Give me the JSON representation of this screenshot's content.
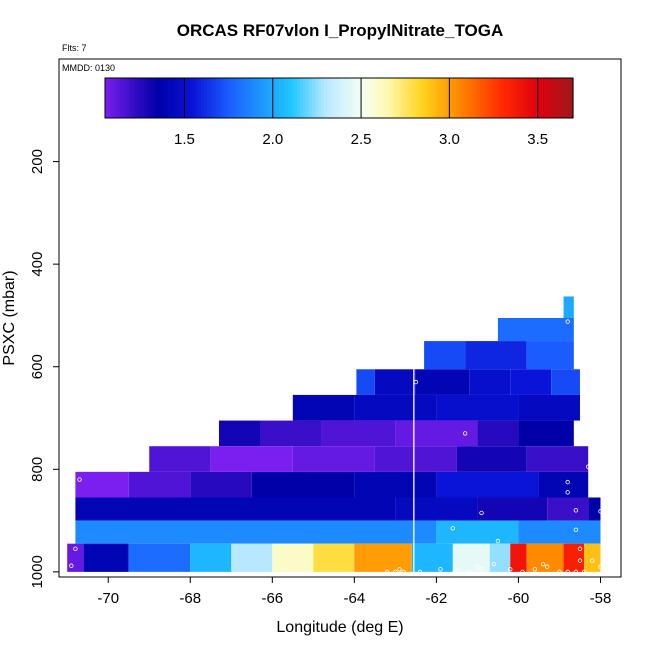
{
  "chart_data": {
    "type": "heatmap",
    "title": "ORCAS RF07vlon I_PropylNitrate_TOGA",
    "top_note": "Flts: 7",
    "legend_note": "MMDD: 0130",
    "xlabel": "Longitude (deg E)",
    "ylabel": "PSXC (mbar)",
    "xlim": [
      -71.2,
      -57.5
    ],
    "ylim": [
      1010,
      0
    ],
    "x_ticks": [
      -70,
      -68,
      -66,
      -64,
      -62,
      -60,
      -58
    ],
    "x_tick_labels": [
      "-70",
      "-68",
      "-66",
      "-64",
      "-62",
      "-60",
      "-58"
    ],
    "y_ticks": [
      200,
      400,
      600,
      800,
      1000
    ],
    "y_tick_labels": [
      "200",
      "400",
      "600",
      "800",
      "1000"
    ],
    "colorbar": {
      "range": [
        1.05,
        3.7
      ],
      "ticks": [
        1.5,
        2.0,
        2.5,
        3.0,
        3.5
      ],
      "tick_labels": [
        "1.5",
        "2.0",
        "2.5",
        "3.0",
        "3.5"
      ],
      "stops": [
        {
          "v": 1.05,
          "c": "#7a1ff0"
        },
        {
          "v": 1.2,
          "c": "#3a0fc8"
        },
        {
          "v": 1.35,
          "c": "#0000a8"
        },
        {
          "v": 1.55,
          "c": "#0a14d8"
        },
        {
          "v": 1.75,
          "c": "#1a5cff"
        },
        {
          "v": 1.95,
          "c": "#1e9bff"
        },
        {
          "v": 2.1,
          "c": "#1ec4ff"
        },
        {
          "v": 2.3,
          "c": "#b8e8ff"
        },
        {
          "v": 2.5,
          "c": "#f4fff4"
        },
        {
          "v": 2.65,
          "c": "#fff9b0"
        },
        {
          "v": 2.85,
          "c": "#ffd21a"
        },
        {
          "v": 3.05,
          "c": "#ff8a00"
        },
        {
          "v": 3.3,
          "c": "#ff2a00"
        },
        {
          "v": 3.5,
          "c": "#e00010"
        },
        {
          "v": 3.7,
          "c": "#9e1a1a"
        }
      ]
    },
    "levels": [
      {
        "p_top": 463,
        "p_bot": 505,
        "cells": [
          {
            "x0": -58.9,
            "x1": -58.65,
            "v": 2.0
          }
        ]
      },
      {
        "p_top": 505,
        "p_bot": 550,
        "cells": [
          {
            "x0": -60.5,
            "x1": -58.65,
            "v": 1.8
          }
        ]
      },
      {
        "p_top": 550,
        "p_bot": 605,
        "cells": [
          {
            "x0": -62.3,
            "x1": -61.3,
            "v": 1.7
          },
          {
            "x0": -61.3,
            "x1": -59.8,
            "v": 1.6
          },
          {
            "x0": -59.8,
            "x1": -58.65,
            "v": 1.75
          }
        ]
      },
      {
        "p_top": 605,
        "p_bot": 655,
        "cells": [
          {
            "x0": -63.95,
            "x1": -63.5,
            "v": 1.7
          },
          {
            "x0": -63.5,
            "x1": -62.5,
            "v": 1.45
          },
          {
            "x0": -62.5,
            "x1": -61.2,
            "v": 1.4
          },
          {
            "x0": -61.2,
            "x1": -60.2,
            "v": 1.5
          },
          {
            "x0": -60.2,
            "x1": -59.2,
            "v": 1.55
          },
          {
            "x0": -59.2,
            "x1": -58.5,
            "v": 1.7
          }
        ]
      },
      {
        "p_top": 655,
        "p_bot": 705,
        "cells": [
          {
            "x0": -65.5,
            "x1": -64.0,
            "v": 1.4
          },
          {
            "x0": -64.0,
            "x1": -62.0,
            "v": 1.45
          },
          {
            "x0": -62.0,
            "x1": -60.0,
            "v": 1.5
          },
          {
            "x0": -60.0,
            "x1": -58.5,
            "v": 1.45
          }
        ]
      },
      {
        "p_top": 705,
        "p_bot": 755,
        "cells": [
          {
            "x0": -67.3,
            "x1": -66.3,
            "v": 1.3
          },
          {
            "x0": -66.3,
            "x1": -64.8,
            "v": 1.2
          },
          {
            "x0": -64.8,
            "x1": -63.0,
            "v": 1.15
          },
          {
            "x0": -63.0,
            "x1": -61.0,
            "v": 1.1
          },
          {
            "x0": -61.0,
            "x1": -60.0,
            "v": 1.25
          },
          {
            "x0": -60.0,
            "x1": -58.65,
            "v": 1.35
          }
        ]
      },
      {
        "p_top": 755,
        "p_bot": 805,
        "cells": [
          {
            "x0": -69.0,
            "x1": -67.5,
            "v": 1.15
          },
          {
            "x0": -67.5,
            "x1": -65.5,
            "v": 1.05
          },
          {
            "x0": -65.5,
            "x1": -63.5,
            "v": 1.1
          },
          {
            "x0": -63.5,
            "x1": -61.5,
            "v": 1.15
          },
          {
            "x0": -61.5,
            "x1": -59.8,
            "v": 1.3
          },
          {
            "x0": -59.8,
            "x1": -58.3,
            "v": 1.2
          }
        ]
      },
      {
        "p_top": 805,
        "p_bot": 855,
        "cells": [
          {
            "x0": -70.8,
            "x1": -69.5,
            "v": 1.05
          },
          {
            "x0": -69.5,
            "x1": -68.0,
            "v": 1.15
          },
          {
            "x0": -68.0,
            "x1": -66.5,
            "v": 1.25
          },
          {
            "x0": -66.5,
            "x1": -64.0,
            "v": 1.35
          },
          {
            "x0": -64.0,
            "x1": -62.0,
            "v": 1.4
          },
          {
            "x0": -62.0,
            "x1": -59.5,
            "v": 1.55
          },
          {
            "x0": -59.5,
            "x1": -58.3,
            "v": 1.4
          }
        ]
      },
      {
        "p_top": 855,
        "p_bot": 900,
        "cells": [
          {
            "x0": -70.8,
            "x1": -63.0,
            "v": 1.4
          },
          {
            "x0": -63.0,
            "x1": -61.0,
            "v": 1.45
          },
          {
            "x0": -61.0,
            "x1": -59.3,
            "v": 1.3
          },
          {
            "x0": -59.3,
            "x1": -58.3,
            "v": 1.2
          },
          {
            "x0": -58.3,
            "x1": -58.0,
            "v": 1.35
          }
        ]
      },
      {
        "p_top": 900,
        "p_bot": 945,
        "cells": [
          {
            "x0": -70.8,
            "x1": -62.0,
            "v": 1.9
          },
          {
            "x0": -62.0,
            "x1": -60.0,
            "v": 2.05
          },
          {
            "x0": -60.0,
            "x1": -58.0,
            "v": 1.9
          }
        ]
      },
      {
        "p_top": 945,
        "p_bot": 1000,
        "cells": [
          {
            "x0": -71.0,
            "x1": -70.6,
            "v": 1.1
          },
          {
            "x0": -70.6,
            "x1": -69.5,
            "v": 1.4
          },
          {
            "x0": -69.5,
            "x1": -68.0,
            "v": 1.8
          },
          {
            "x0": -68.0,
            "x1": -67.0,
            "v": 2.05
          },
          {
            "x0": -67.0,
            "x1": -66.0,
            "v": 2.3
          },
          {
            "x0": -66.0,
            "x1": -65.0,
            "v": 2.6
          },
          {
            "x0": -65.0,
            "x1": -64.0,
            "v": 2.8
          },
          {
            "x0": -64.0,
            "x1": -62.6,
            "v": 3.0
          },
          {
            "x0": -62.6,
            "x1": -61.6,
            "v": 2.05
          },
          {
            "x0": -61.6,
            "x1": -60.7,
            "v": 2.45
          },
          {
            "x0": -60.7,
            "x1": -60.2,
            "v": 2.25
          },
          {
            "x0": -60.2,
            "x1": -59.8,
            "v": 3.4
          },
          {
            "x0": -59.8,
            "x1": -58.9,
            "v": 3.05
          },
          {
            "x0": -58.9,
            "x1": -58.4,
            "v": 3.35
          },
          {
            "x0": -58.4,
            "x1": -58.0,
            "v": 2.9
          }
        ]
      }
    ],
    "flight_track_x": -62.55,
    "observations": [
      {
        "x": -70.7,
        "p": 820
      },
      {
        "x": -70.8,
        "p": 955
      },
      {
        "x": -70.9,
        "p": 988
      },
      {
        "x": -62.5,
        "p": 630
      },
      {
        "x": -61.3,
        "p": 730
      },
      {
        "x": -60.9,
        "p": 885
      },
      {
        "x": -61.6,
        "p": 915
      },
      {
        "x": -60.5,
        "p": 940
      },
      {
        "x": -58.8,
        "p": 512
      },
      {
        "x": -58.8,
        "p": 825
      },
      {
        "x": -58.8,
        "p": 845
      },
      {
        "x": -58.6,
        "p": 880
      },
      {
        "x": -58.6,
        "p": 918
      },
      {
        "x": -58.0,
        "p": 882
      },
      {
        "x": -58.3,
        "p": 795
      },
      {
        "x": -58.5,
        "p": 955
      },
      {
        "x": -63.2,
        "p": 1000
      },
      {
        "x": -63.0,
        "p": 1000
      },
      {
        "x": -62.8,
        "p": 1000
      },
      {
        "x": -62.4,
        "p": 1000
      },
      {
        "x": -61.9,
        "p": 995
      },
      {
        "x": -61.5,
        "p": 998
      },
      {
        "x": -61.2,
        "p": 1000
      },
      {
        "x": -60.9,
        "p": 995
      },
      {
        "x": -60.6,
        "p": 985
      },
      {
        "x": -60.2,
        "p": 995
      },
      {
        "x": -59.9,
        "p": 1000
      },
      {
        "x": -59.6,
        "p": 995
      },
      {
        "x": -59.3,
        "p": 990
      },
      {
        "x": -59.0,
        "p": 1000
      },
      {
        "x": -58.8,
        "p": 1000
      },
      {
        "x": -58.6,
        "p": 1000
      },
      {
        "x": -58.4,
        "p": 1000
      },
      {
        "x": -58.5,
        "p": 978
      },
      {
        "x": -58.2,
        "p": 978
      },
      {
        "x": -58.0,
        "p": 990
      },
      {
        "x": -59.4,
        "p": 985
      },
      {
        "x": -62.9,
        "p": 995
      },
      {
        "x": -61.0,
        "p": 990
      }
    ]
  }
}
